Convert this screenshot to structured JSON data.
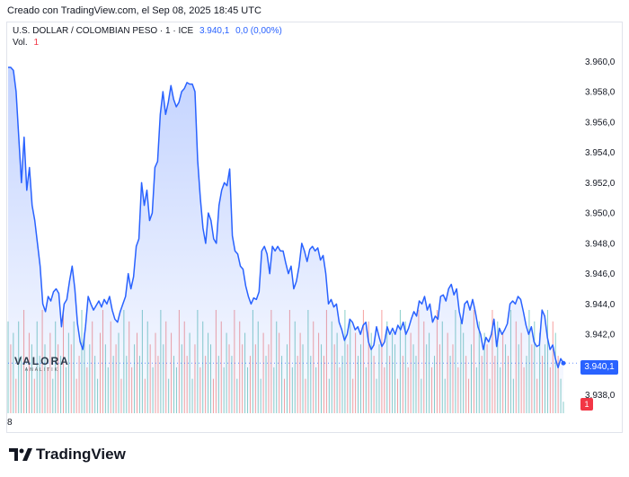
{
  "caption": "Creado con TradingView.com, el Sep 08, 2025 18:45 UTC",
  "legend": {
    "symbol": "U.S. DOLLAR / COLOMBIAN PESO · 1 · ICE",
    "last": "3.940,1",
    "change": "0,0 (0,00%)",
    "vol_label": "Vol.",
    "vol_value": "1"
  },
  "brand": {
    "name": "TradingView"
  },
  "watermark": {
    "name": "VALORA",
    "sub": "ANALITIK"
  },
  "colors": {
    "line": "#2962ff",
    "fill": "#2962ff",
    "vol_up": "#26a69a",
    "vol_down": "#ef5350",
    "tag": "#2962ff",
    "vol_tag": "#f23645"
  },
  "chart_data": {
    "type": "area",
    "y_axis_labels": [
      "3.960,0",
      "3.958,0",
      "3.956,0",
      "3.954,0",
      "3.952,0",
      "3.950,0",
      "3.948,0",
      "3.946,0",
      "3.944,0",
      "3.942,0",
      "3.938,0"
    ],
    "ylim": [
      3936.8,
      3961.2
    ],
    "x_tick_label": "8",
    "last_price_label": "3.940,1",
    "volume_label": "1",
    "grid": false,
    "series": [
      {
        "values": [
          3959.6,
          3959.6,
          3959.4,
          3958.0,
          3955.0,
          3952.0,
          3955.0,
          3951.5,
          3953.0,
          3950.5,
          3949.5,
          3948.0,
          3946.5,
          3944.0,
          3943.5,
          3944.5,
          3944.2,
          3944.8,
          3945.0,
          3944.7,
          3942.5,
          3944.0,
          3944.3,
          3945.5,
          3946.5,
          3945.0,
          3942.7,
          3941.5,
          3941.0,
          3942.5,
          3944.5,
          3944.0,
          3943.6,
          3943.9,
          3944.2,
          3943.8,
          3944.3,
          3944.0,
          3944.5,
          3943.6,
          3943.0,
          3942.8,
          3943.5,
          3944.0,
          3944.5,
          3946.0,
          3945.0,
          3945.8,
          3947.8,
          3948.3,
          3952.0,
          3950.5,
          3951.5,
          3949.5,
          3950.0,
          3953.0,
          3953.4,
          3956.5,
          3958.0,
          3956.5,
          3957.3,
          3958.4,
          3957.5,
          3957.0,
          3957.3,
          3958.0,
          3958.2,
          3958.6,
          3958.5,
          3958.5,
          3958.0,
          3953.5,
          3951.0,
          3949.0,
          3948.0,
          3950.0,
          3949.5,
          3948.3,
          3948.0,
          3950.5,
          3951.5,
          3952.0,
          3951.8,
          3952.9,
          3948.5,
          3947.5,
          3947.3,
          3946.5,
          3946.3,
          3945.2,
          3944.5,
          3944.0,
          3944.4,
          3944.3,
          3944.8,
          3947.5,
          3947.8,
          3947.3,
          3946.0,
          3947.8,
          3947.5,
          3947.8,
          3947.5,
          3947.5,
          3946.7,
          3946.0,
          3946.5,
          3945.0,
          3945.5,
          3946.5,
          3948.0,
          3947.5,
          3946.8,
          3947.6,
          3947.8,
          3947.5,
          3947.7,
          3946.9,
          3947.2,
          3946.0,
          3944.0,
          3944.3,
          3943.8,
          3944.0,
          3942.8,
          3942.3,
          3941.6,
          3942.0,
          3943.0,
          3942.8,
          3942.3,
          3942.5,
          3942.0,
          3942.6,
          3942.8,
          3941.5,
          3941.0,
          3941.3,
          3942.5,
          3941.8,
          3941.2,
          3941.5,
          3942.5,
          3942.0,
          3942.4,
          3942.0,
          3942.6,
          3942.3,
          3942.8,
          3942.0,
          3942.4,
          3943.0,
          3943.5,
          3943.2,
          3944.2,
          3944.0,
          3944.5,
          3943.6,
          3944.0,
          3942.8,
          3943.2,
          3943.0,
          3944.5,
          3944.6,
          3944.2,
          3945.0,
          3945.3,
          3944.6,
          3945.0,
          3943.5,
          3942.7,
          3944.0,
          3944.2,
          3943.6,
          3944.3,
          3943.5,
          3942.5,
          3942.0,
          3941.0,
          3941.8,
          3941.5,
          3942.0,
          3943.0,
          3941.2,
          3942.4,
          3942.0,
          3942.3,
          3942.7,
          3944.0,
          3944.2,
          3944.0,
          3944.5,
          3944.3,
          3943.5,
          3942.6,
          3942.0,
          3942.5,
          3941.5,
          3941.2,
          3941.3,
          3943.6,
          3943.2,
          3941.8,
          3941.0,
          3941.3,
          3940.4,
          3939.8,
          3940.4,
          3940.1
        ]
      }
    ],
    "volume": {
      "values": [
        8,
        6,
        7,
        3,
        8,
        5,
        9,
        4,
        7,
        6,
        3,
        8,
        5,
        9,
        6,
        4,
        7,
        3,
        8,
        6,
        5,
        9,
        4,
        7,
        6,
        8,
        3,
        5,
        9,
        7,
        4,
        6,
        8,
        5,
        3,
        7,
        9,
        6,
        4,
        8,
        5,
        6,
        7,
        3,
        9,
        5,
        8,
        4,
        6,
        7,
        5,
        9,
        3,
        8,
        6,
        4,
        7,
        5,
        9,
        6,
        8,
        3,
        7,
        5,
        4,
        9,
        6,
        8,
        5,
        7,
        3,
        6,
        9,
        4,
        8,
        5,
        7,
        6,
        3,
        9,
        5,
        8,
        4,
        7,
        6,
        5,
        9,
        3,
        8,
        6,
        7,
        4,
        5,
        9,
        6,
        8,
        3,
        7,
        5,
        6,
        9,
        4,
        8,
        7,
        5,
        3,
        6,
        9,
        4,
        8,
        5,
        7,
        6,
        3,
        9,
        5,
        8,
        4,
        7,
        6,
        5,
        9,
        3,
        8,
        6,
        7,
        4,
        5,
        9,
        6,
        8,
        3,
        7,
        5,
        6,
        9,
        4,
        8,
        7,
        5,
        3,
        6,
        9,
        4,
        8,
        5,
        7,
        6,
        3,
        9,
        5,
        8,
        4,
        7,
        6,
        5,
        9,
        3,
        8,
        6,
        7,
        4,
        5,
        9,
        6,
        8,
        3,
        7,
        5,
        6,
        9,
        4,
        8,
        7,
        5,
        3,
        6,
        9,
        4,
        8,
        5,
        7,
        6,
        3,
        9,
        5,
        8,
        4,
        7,
        6,
        5,
        9,
        3,
        8,
        6,
        7,
        4,
        5,
        9,
        6,
        8,
        3,
        7,
        5,
        6,
        9,
        4,
        8,
        7,
        5,
        3,
        1
      ],
      "up": [
        1,
        0,
        1,
        0,
        1,
        1,
        0,
        1,
        0,
        1,
        0,
        1,
        1,
        0,
        1,
        0,
        0,
        1,
        1,
        0,
        1,
        0,
        1,
        1,
        0,
        1,
        0,
        0,
        1,
        1,
        0,
        1,
        0,
        1,
        1,
        0,
        0,
        1,
        1,
        0,
        1,
        0,
        1,
        0,
        1,
        1,
        0,
        0,
        1,
        0,
        1,
        1,
        0,
        1,
        0,
        1,
        0,
        0,
        1,
        1,
        0,
        1,
        0,
        1,
        1,
        0,
        1,
        0,
        0,
        1,
        1,
        0,
        1,
        0,
        1,
        0,
        1,
        1,
        0,
        0,
        1,
        0,
        1,
        1,
        0,
        1,
        0,
        1,
        0,
        0,
        1,
        1,
        0,
        1,
        0,
        1,
        1,
        0,
        1,
        0,
        0,
        1,
        1,
        0,
        1,
        0,
        1,
        0,
        1,
        1,
        0,
        0,
        1,
        0,
        1,
        1,
        0,
        1,
        0,
        1,
        0,
        0,
        1,
        1,
        0,
        1,
        0,
        1,
        1,
        0,
        1,
        0,
        0,
        1,
        1,
        0,
        1,
        0,
        1,
        0,
        1,
        1,
        0,
        0,
        1,
        0,
        1,
        1,
        0,
        1,
        0,
        1,
        0,
        0,
        1,
        1,
        0,
        1,
        0,
        1,
        1,
        0,
        1,
        0,
        0,
        1,
        1,
        0,
        1,
        0,
        1,
        0,
        1,
        1,
        0,
        0,
        1,
        0,
        1,
        1,
        0,
        1,
        0,
        1,
        0,
        0,
        1,
        1,
        0,
        1,
        0,
        1,
        1,
        0,
        1,
        0,
        0,
        1,
        1,
        0,
        1,
        0,
        1,
        0,
        1,
        1,
        0,
        0,
        1,
        0,
        1,
        1,
        0,
        1,
        0
      ]
    }
  }
}
